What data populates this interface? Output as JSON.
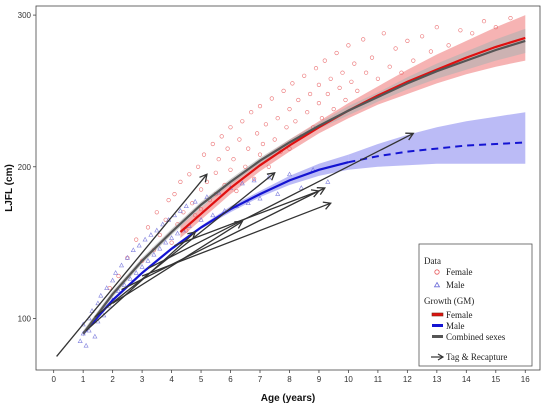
{
  "chart_data": {
    "type": "scatter",
    "xlabel": "Age (years)",
    "ylabel": "LJFL (cm)",
    "xlim": [
      -0.6,
      16.5
    ],
    "ylim": [
      66,
      306
    ],
    "x_ticks": [
      0,
      1,
      2,
      3,
      4,
      5,
      6,
      7,
      8,
      9,
      10,
      11,
      12,
      13,
      14,
      15,
      16
    ],
    "y_ticks": [
      100,
      200,
      300
    ],
    "grid": false,
    "legend_position": "bottom-right",
    "legend": {
      "data_title": "Data",
      "data_items": [
        {
          "label": "Female",
          "marker": "circle",
          "color": "#e8585a"
        },
        {
          "label": "Male",
          "marker": "triangle",
          "color": "#6a6ad8"
        }
      ],
      "growth_title": "Growth (GM)",
      "growth_items": [
        {
          "label": "Female",
          "color": "#e01010"
        },
        {
          "label": "Male",
          "color": "#1414d2"
        },
        {
          "label": "Combined sexes",
          "color": "#555555"
        }
      ],
      "arrow_label": "Tag & Recapture"
    },
    "series": [
      {
        "name": "Female",
        "kind": "growth_curve",
        "color": "#e01010",
        "band_color": "#f08080",
        "x": [
          4.3,
          5,
          6,
          7,
          8,
          9,
          10,
          11,
          12,
          13,
          14,
          15,
          16
        ],
        "y": [
          157,
          169,
          186,
          201,
          214,
          226,
          237,
          247,
          256,
          264,
          272,
          279,
          285
        ],
        "lower": [
          153,
          165,
          182,
          197,
          210,
          222,
          232,
          241,
          248,
          255,
          261,
          266,
          270
        ],
        "upper": [
          161,
          173,
          190,
          205,
          218,
          230,
          242,
          253,
          264,
          274,
          283,
          292,
          300
        ]
      },
      {
        "name": "Male",
        "kind": "growth_curve",
        "color": "#1414d2",
        "band_color": "#8e8ef0",
        "x": [
          1,
          2,
          3,
          4,
          5,
          6,
          7,
          8,
          9,
          10
        ],
        "y": [
          90,
          112,
          130,
          146,
          160,
          172,
          182,
          191,
          198,
          203
        ],
        "lower": [
          89,
          111,
          129,
          145,
          159,
          170,
          180,
          188,
          194,
          198
        ],
        "upper": [
          91,
          113,
          131,
          147,
          161,
          174,
          184,
          194,
          202,
          208
        ],
        "extrapolated": {
          "x": [
            10,
            11,
            12,
            13,
            14,
            15,
            16
          ],
          "y": [
            203,
            207,
            210,
            212,
            214,
            215,
            216
          ],
          "lower": [
            198,
            200,
            201,
            202,
            202,
            202,
            202
          ],
          "upper": [
            208,
            215,
            221,
            226,
            230,
            233,
            236
          ]
        }
      },
      {
        "name": "Combined sexes",
        "kind": "growth_curve",
        "color": "#555555",
        "band_color": "#b0b0b0",
        "x": [
          1,
          2,
          3,
          4,
          5,
          6,
          7,
          8,
          9,
          10,
          11,
          12,
          13,
          14,
          15,
          16
        ],
        "y": [
          90,
          116,
          138,
          157,
          175,
          190,
          204,
          216,
          227,
          237,
          246,
          255,
          263,
          270,
          277,
          283
        ],
        "lower": [
          88,
          114,
          136,
          155,
          173,
          188,
          202,
          214,
          225,
          234,
          243,
          251,
          258,
          264,
          270,
          275
        ],
        "upper": [
          92,
          118,
          140,
          159,
          177,
          192,
          206,
          218,
          229,
          240,
          249,
          259,
          268,
          276,
          284,
          291
        ]
      },
      {
        "name": "Tag & Recapture",
        "kind": "arrows",
        "color": "#333333",
        "segments": [
          {
            "x1": 0.1,
            "y1": 75,
            "x2": 5.2,
            "y2": 195
          },
          {
            "x1": 1.1,
            "y1": 92,
            "x2": 4.8,
            "y2": 157
          },
          {
            "x1": 1.4,
            "y1": 101,
            "x2": 7.5,
            "y2": 196
          },
          {
            "x1": 2.0,
            "y1": 110,
            "x2": 6.4,
            "y2": 164
          },
          {
            "x1": 2.3,
            "y1": 119,
            "x2": 9.2,
            "y2": 186
          },
          {
            "x1": 3.0,
            "y1": 128,
            "x2": 9.4,
            "y2": 176
          },
          {
            "x1": 3.2,
            "y1": 133,
            "x2": 12.2,
            "y2": 222
          },
          {
            "x1": 4.1,
            "y1": 148,
            "x2": 9.0,
            "y2": 184
          }
        ]
      },
      {
        "name": "Female",
        "kind": "points",
        "marker": "circle",
        "color": "#e8585a",
        "points": [
          [
            1.9,
            120
          ],
          [
            2.2,
            128
          ],
          [
            2.5,
            140
          ],
          [
            2.8,
            152
          ],
          [
            3.0,
            138
          ],
          [
            3.2,
            160
          ],
          [
            3.4,
            145
          ],
          [
            3.5,
            170
          ],
          [
            3.6,
            155
          ],
          [
            3.8,
            165
          ],
          [
            3.9,
            178
          ],
          [
            4.0,
            150
          ],
          [
            4.1,
            182
          ],
          [
            4.2,
            162
          ],
          [
            4.3,
            190
          ],
          [
            4.4,
            170
          ],
          [
            4.5,
            158
          ],
          [
            4.6,
            195
          ],
          [
            4.7,
            176
          ],
          [
            4.8,
            168
          ],
          [
            4.9,
            200
          ],
          [
            5.0,
            185
          ],
          [
            5.0,
            172
          ],
          [
            5.1,
            208
          ],
          [
            5.2,
            190
          ],
          [
            5.3,
            178
          ],
          [
            5.4,
            215
          ],
          [
            5.5,
            196
          ],
          [
            5.5,
            182
          ],
          [
            5.6,
            205
          ],
          [
            5.7,
            220
          ],
          [
            5.8,
            188
          ],
          [
            5.9,
            212
          ],
          [
            6.0,
            198
          ],
          [
            6.0,
            226
          ],
          [
            6.1,
            205
          ],
          [
            6.2,
            184
          ],
          [
            6.3,
            218
          ],
          [
            6.4,
            230
          ],
          [
            6.5,
            200
          ],
          [
            6.6,
            212
          ],
          [
            6.7,
            236
          ],
          [
            6.8,
            192
          ],
          [
            6.9,
            222
          ],
          [
            7.0,
            208
          ],
          [
            7.0,
            240
          ],
          [
            7.1,
            215
          ],
          [
            7.2,
            228
          ],
          [
            7.3,
            200
          ],
          [
            7.4,
            245
          ],
          [
            7.5,
            218
          ],
          [
            7.6,
            232
          ],
          [
            7.7,
            210
          ],
          [
            7.8,
            250
          ],
          [
            7.9,
            226
          ],
          [
            8.0,
            238
          ],
          [
            8.0,
            212
          ],
          [
            8.1,
            255
          ],
          [
            8.2,
            230
          ],
          [
            8.3,
            244
          ],
          [
            8.4,
            220
          ],
          [
            8.5,
            260
          ],
          [
            8.6,
            236
          ],
          [
            8.7,
            248
          ],
          [
            8.8,
            226
          ],
          [
            8.9,
            265
          ],
          [
            9.0,
            242
          ],
          [
            9.0,
            254
          ],
          [
            9.1,
            232
          ],
          [
            9.2,
            270
          ],
          [
            9.3,
            248
          ],
          [
            9.4,
            258
          ],
          [
            9.5,
            238
          ],
          [
            9.6,
            275
          ],
          [
            9.7,
            252
          ],
          [
            9.8,
            262
          ],
          [
            9.9,
            244
          ],
          [
            10.0,
            280
          ],
          [
            10.1,
            256
          ],
          [
            10.2,
            268
          ],
          [
            10.3,
            250
          ],
          [
            10.5,
            284
          ],
          [
            10.6,
            262
          ],
          [
            10.8,
            272
          ],
          [
            11.0,
            258
          ],
          [
            11.2,
            288
          ],
          [
            11.4,
            266
          ],
          [
            11.6,
            278
          ],
          [
            11.8,
            262
          ],
          [
            12.0,
            283
          ],
          [
            12.2,
            270
          ],
          [
            12.5,
            286
          ],
          [
            12.8,
            276
          ],
          [
            13.0,
            292
          ],
          [
            13.4,
            280
          ],
          [
            13.8,
            290
          ],
          [
            14.2,
            288
          ],
          [
            14.6,
            296
          ],
          [
            15.0,
            292
          ],
          [
            15.5,
            298
          ]
        ]
      },
      {
        "name": "Male",
        "kind": "points",
        "marker": "triangle",
        "color": "#6a6ad8",
        "points": [
          [
            0.9,
            85
          ],
          [
            1.0,
            90
          ],
          [
            1.0,
            96
          ],
          [
            1.1,
            82
          ],
          [
            1.2,
            100
          ],
          [
            1.2,
            92
          ],
          [
            1.3,
            105
          ],
          [
            1.4,
            88
          ],
          [
            1.5,
            110
          ],
          [
            1.5,
            98
          ],
          [
            1.6,
            115
          ],
          [
            1.7,
            102
          ],
          [
            1.8,
            120
          ],
          [
            1.9,
            108
          ],
          [
            2.0,
            125
          ],
          [
            2.0,
            112
          ],
          [
            2.1,
            130
          ],
          [
            2.2,
            118
          ],
          [
            2.3,
            135
          ],
          [
            2.4,
            122
          ],
          [
            2.5,
            140
          ],
          [
            2.6,
            126
          ],
          [
            2.7,
            145
          ],
          [
            2.8,
            130
          ],
          [
            2.9,
            148
          ],
          [
            3.0,
            134
          ],
          [
            3.1,
            152
          ],
          [
            3.2,
            138
          ],
          [
            3.3,
            155
          ],
          [
            3.4,
            142
          ],
          [
            3.5,
            158
          ],
          [
            3.6,
            146
          ],
          [
            3.7,
            162
          ],
          [
            3.8,
            150
          ],
          [
            3.9,
            165
          ],
          [
            4.0,
            153
          ],
          [
            4.1,
            168
          ],
          [
            4.2,
            156
          ],
          [
            4.3,
            171
          ],
          [
            4.4,
            158
          ],
          [
            4.5,
            174
          ],
          [
            4.6,
            161
          ],
          [
            4.8,
            177
          ],
          [
            5.0,
            165
          ],
          [
            5.2,
            180
          ],
          [
            5.4,
            168
          ],
          [
            5.6,
            183
          ],
          [
            5.8,
            171
          ],
          [
            6.0,
            186
          ],
          [
            6.2,
            174
          ],
          [
            6.4,
            189
          ],
          [
            6.6,
            176
          ],
          [
            6.8,
            191
          ],
          [
            7.0,
            179
          ],
          [
            7.3,
            193
          ],
          [
            7.6,
            182
          ],
          [
            8.0,
            195
          ],
          [
            8.4,
            186
          ],
          [
            8.8,
            198
          ],
          [
            9.3,
            190
          ]
        ]
      }
    ]
  }
}
